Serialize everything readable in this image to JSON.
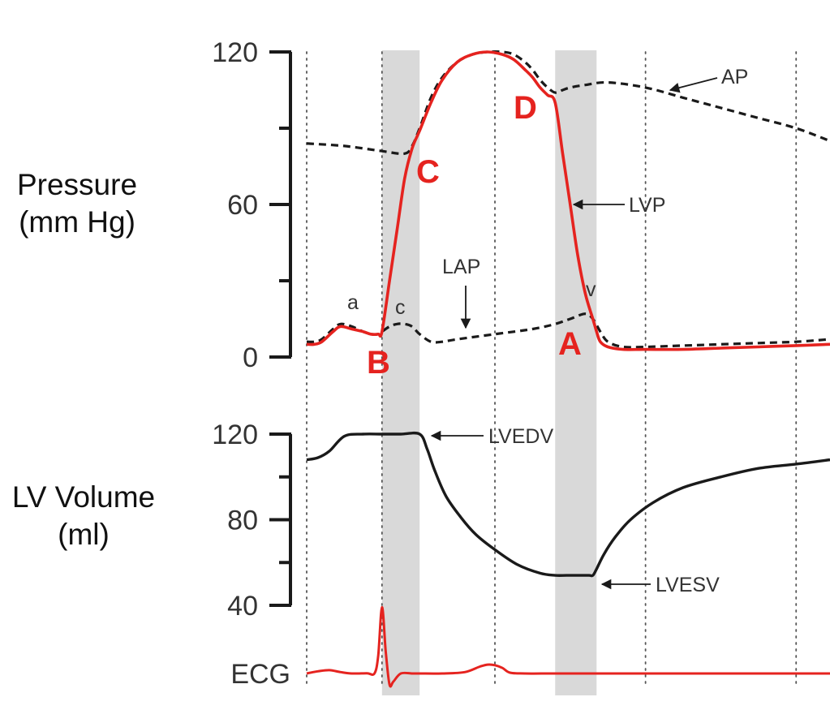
{
  "chart_data": {
    "type": "line",
    "title": "",
    "colors": {
      "lvp": "#e5231f",
      "ecg": "#e5231f",
      "dashed": "#1a1a1a",
      "volume": "#1a1a1a",
      "shade": "#d9d9d9"
    },
    "time_markers": [
      0.0,
      0.2,
      0.5,
      0.9,
      1.3
    ],
    "shaded_intervals": [
      [
        0.2,
        0.3
      ],
      [
        0.66,
        0.77
      ]
    ],
    "pressure_panel": {
      "ylabel_line1": "Pressure",
      "ylabel_line2": "(mm Hg)",
      "ylim": [
        0,
        120
      ],
      "y_ticks": [
        0,
        60,
        120
      ],
      "y_minor_ticks": [
        30,
        90
      ],
      "series": [
        {
          "name": "LVP",
          "style": "solid",
          "x": [
            0.0,
            0.02,
            0.04,
            0.07,
            0.09,
            0.12,
            0.15,
            0.17,
            0.19,
            0.2,
            0.22,
            0.24,
            0.26,
            0.28,
            0.3,
            0.33,
            0.36,
            0.4,
            0.44,
            0.48,
            0.52,
            0.55,
            0.58,
            0.6,
            0.62,
            0.64,
            0.66,
            0.68,
            0.7,
            0.72,
            0.74,
            0.76,
            0.77,
            0.78,
            0.8,
            0.84,
            0.9,
            1.0,
            1.1,
            1.2,
            1.3,
            1.39
          ],
          "y": [
            5,
            5,
            6,
            10,
            12,
            11,
            10,
            9,
            9,
            10,
            30,
            50,
            70,
            82,
            89,
            100,
            109,
            116,
            119,
            120,
            119,
            117,
            113,
            110,
            106,
            103,
            100,
            80,
            60,
            40,
            25,
            15,
            10,
            6,
            4,
            3,
            3,
            3,
            3.5,
            4,
            4.5,
            5
          ]
        },
        {
          "name": "AP",
          "style": "dashed",
          "x": [
            0.0,
            0.1,
            0.2,
            0.26,
            0.28,
            0.3,
            0.33,
            0.36,
            0.4,
            0.44,
            0.48,
            0.52,
            0.55,
            0.58,
            0.6,
            0.62,
            0.64,
            0.66,
            0.68,
            0.7,
            0.74,
            0.8,
            0.9,
            1.0,
            1.1,
            1.2,
            1.3,
            1.39
          ],
          "y": [
            84,
            83,
            81,
            80,
            83,
            90,
            102,
            110,
            116,
            119,
            120,
            120,
            119,
            116,
            113,
            109,
            106,
            104,
            105,
            106,
            107,
            108,
            106,
            102,
            98,
            94,
            90,
            85
          ]
        },
        {
          "name": "LAP",
          "style": "dashed",
          "x": [
            0.0,
            0.02,
            0.04,
            0.07,
            0.09,
            0.12,
            0.15,
            0.17,
            0.19,
            0.2,
            0.22,
            0.24,
            0.26,
            0.28,
            0.3,
            0.33,
            0.36,
            0.4,
            0.5,
            0.6,
            0.66,
            0.7,
            0.74,
            0.76,
            0.78,
            0.8,
            0.84,
            0.9,
            1.0,
            1.1,
            1.2,
            1.3,
            1.39
          ],
          "y": [
            6,
            6,
            7,
            11,
            13,
            12,
            10,
            9,
            9,
            10,
            12,
            13,
            13,
            12,
            9,
            6,
            6,
            7,
            9,
            11,
            13,
            15,
            17,
            15,
            10,
            6,
            4,
            4,
            4.5,
            5,
            5.5,
            6,
            7
          ]
        }
      ]
    },
    "volume_panel": {
      "ylabel_line1": "LV Volume",
      "ylabel_line2": "(ml)",
      "ylim": [
        40,
        120
      ],
      "y_ticks": [
        40,
        80,
        120
      ],
      "y_minor_ticks": [
        60,
        100
      ],
      "series": [
        {
          "name": "LV Volume",
          "style": "solid",
          "x": [
            0.0,
            0.03,
            0.06,
            0.1,
            0.15,
            0.2,
            0.25,
            0.3,
            0.32,
            0.34,
            0.37,
            0.41,
            0.45,
            0.5,
            0.56,
            0.62,
            0.66,
            0.69,
            0.72,
            0.75,
            0.76,
            0.77,
            0.79,
            0.82,
            0.86,
            0.92,
            1.0,
            1.1,
            1.2,
            1.3,
            1.39
          ],
          "y": [
            108,
            109,
            112,
            119,
            120,
            120,
            120,
            120,
            113,
            103,
            91,
            81,
            73,
            66,
            59,
            55,
            54,
            54,
            54,
            54,
            54,
            57,
            64,
            72,
            80,
            88,
            95,
            100,
            104,
            106,
            108
          ]
        }
      ]
    },
    "ecg": {
      "label": "ECG",
      "x": [
        0.0,
        0.01,
        0.03,
        0.06,
        0.09,
        0.12,
        0.16,
        0.18,
        0.19,
        0.2,
        0.21,
        0.22,
        0.23,
        0.25,
        0.28,
        0.3,
        0.36,
        0.42,
        0.46,
        0.48,
        0.5,
        0.52,
        0.54,
        0.58,
        0.66,
        0.8,
        1.0,
        1.2,
        1.39
      ],
      "y": [
        0,
        0.3,
        0.8,
        1.2,
        0.5,
        0,
        0.1,
        0,
        6.5,
        24,
        8,
        -4,
        -3,
        0,
        0,
        0,
        0,
        0.5,
        2.5,
        3.2,
        3,
        2,
        0.3,
        0,
        0,
        0,
        0,
        0,
        0
      ]
    },
    "annotations": {
      "wave_a": "a",
      "wave_c": "c",
      "wave_v": "v",
      "lap_label": "LAP",
      "ap_label": "AP",
      "lvp_label": "LVP",
      "lvedv_label": "LVEDV",
      "lvesv_label": "LVESV",
      "phase_a": "A",
      "phase_b": "B",
      "phase_c": "C",
      "phase_d": "D"
    }
  }
}
